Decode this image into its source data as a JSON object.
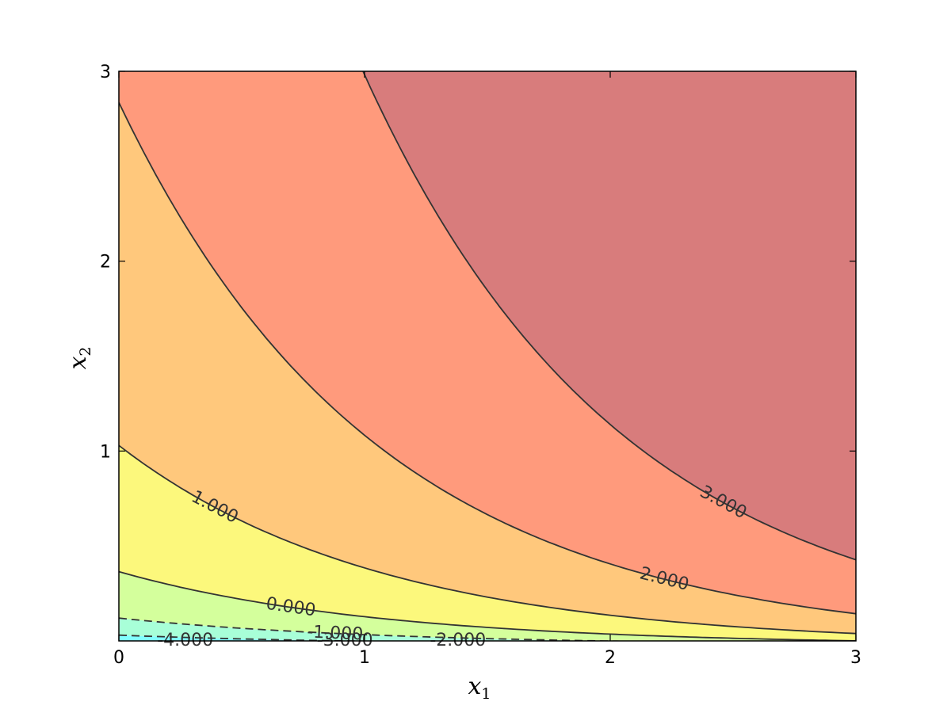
{
  "chart_data": {
    "type": "contour",
    "function": "log(x1) + log(x2) + ... (filled contour levels of z)",
    "xlim": [
      0,
      3
    ],
    "ylim": [
      0,
      3
    ],
    "xticks": [
      "0",
      "1",
      "2",
      "3"
    ],
    "yticks": [
      "1",
      "2",
      "3"
    ],
    "xlabel": {
      "base": "x",
      "sub": "1"
    },
    "ylabel": {
      "base": "x",
      "sub": "2"
    },
    "grid": false,
    "levels": [
      -4,
      -3,
      -2,
      -1,
      0,
      1,
      2,
      3
    ],
    "level_labels": [
      "-4.000",
      "-3.000",
      "-2.000",
      "-1.000",
      "0.000",
      "1.000",
      "2.000",
      "3.000"
    ],
    "band_colors": [
      "#8080ff",
      "#80c0ff",
      "#80ffff",
      "#a8ffd8",
      "#d4ff9c",
      "#fcf87c",
      "#ffc87c",
      "#ff9a7c",
      "#d87c7c"
    ]
  }
}
